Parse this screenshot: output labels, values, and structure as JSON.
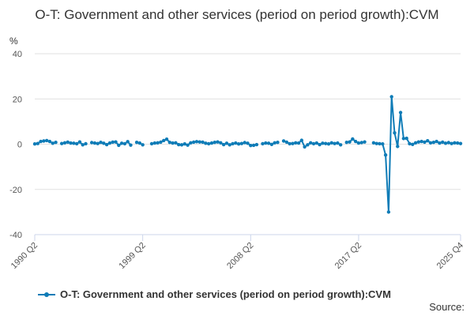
{
  "chart_data": {
    "type": "line",
    "title": "O-T: Government and other services (period on period growth):CVM",
    "ylabel": "%",
    "xlabel": "",
    "ylim": [
      -40,
      40
    ],
    "yticks": [
      40,
      20,
      0,
      -20,
      -40
    ],
    "xticks": [
      "1990 Q2",
      "1999 Q2",
      "2008 Q2",
      "2017 Q2",
      "2025 Q4"
    ],
    "x_start": "1990 Q2",
    "x_end": "2025 Q4",
    "grid": true,
    "legend_position": "bottom",
    "series": [
      {
        "name": "O-T: Government and other services (period on period growth):CVM",
        "color": "#0f7cb7",
        "values": [
          0.1,
          0.3,
          1.2,
          1.4,
          1.6,
          1.2,
          0.4,
          0.8,
          null,
          0.3,
          0.6,
          0.9,
          0.5,
          0.4,
          0.2,
          1.0,
          -0.3,
          0.2,
          null,
          0.7,
          0.5,
          0.3,
          0.8,
          0.4,
          -0.2,
          0.5,
          0.9,
          1.0,
          -0.5,
          0.4,
          0.2,
          1.1,
          -0.4,
          null,
          0.8,
          0.5,
          -0.3,
          null,
          null,
          0.2,
          0.5,
          0.6,
          0.9,
          1.6,
          2.2,
          0.8,
          0.5,
          0.6,
          -0.2,
          -0.3,
          0.1,
          -0.4,
          0.6,
          0.9,
          1.1,
          1.0,
          0.9,
          0.4,
          0.2,
          0.5,
          0.8,
          1.0,
          0.6,
          -0.2,
          0.4,
          -0.3,
          0.2,
          0.5,
          0.1,
          0.3,
          0.7,
          0.4,
          -0.6,
          -0.5,
          -0.2,
          null,
          0.2,
          0.5,
          0.4,
          -0.1,
          0.6,
          0.8,
          null,
          1.4,
          0.9,
          0.2,
          0.3,
          0.6,
          0.5,
          1.7,
          -1.2,
          -0.3,
          0.6,
          0.2,
          0.5,
          -0.2,
          0.4,
          0.3,
          0.1,
          0.6,
          0.3,
          0.5,
          -0.3,
          null,
          0.8,
          1.0,
          2.3,
          1.2,
          0.5,
          0.7,
          1.0,
          null,
          null,
          0.6,
          0.3,
          0.2,
          0.1,
          -4.8,
          -30.0,
          21.0,
          5.0,
          -1.0,
          14.0,
          2.5,
          2.6,
          0.2,
          -0.1,
          0.6,
          1.0,
          1.2,
          0.9,
          1.5,
          0.6,
          0.8,
          1.2,
          0.5,
          0.9,
          0.4,
          0.7,
          0.3,
          0.6,
          0.5,
          0.3
        ]
      }
    ]
  },
  "source_label": "Source:"
}
